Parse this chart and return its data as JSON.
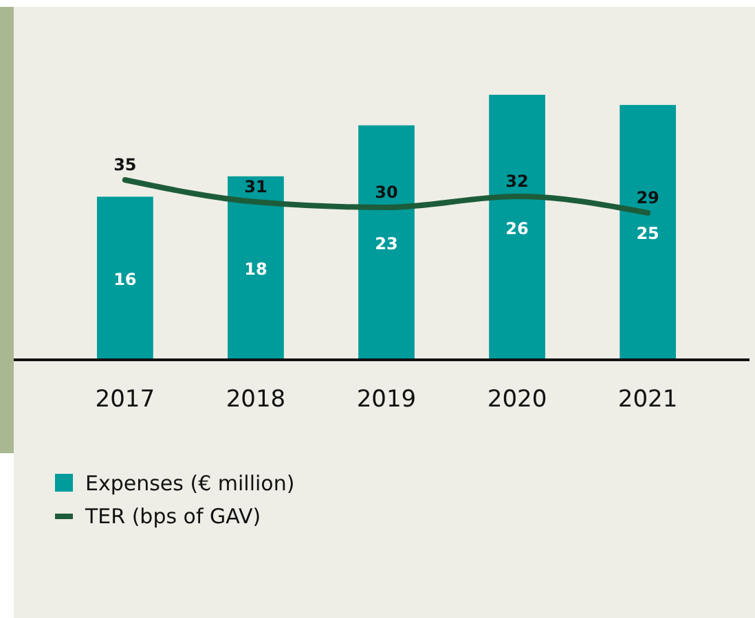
{
  "chart_data": {
    "type": "bar",
    "categories": [
      "2017",
      "2018",
      "2019",
      "2020",
      "2021"
    ],
    "series": [
      {
        "name": "Expenses (€ million)",
        "color": "#009b9b",
        "values": [
          16,
          18,
          23,
          26,
          25
        ]
      },
      {
        "name": "TER (bps of GAV)",
        "type": "line",
        "axis": "y2",
        "color": "#1d5c3a",
        "values": [
          35,
          31,
          30,
          32,
          29
        ]
      }
    ],
    "tick_labels": "x",
    "data_labels": true,
    "legend": "bottom left",
    "marker": "none",
    "line_style": "solid"
  }
}
